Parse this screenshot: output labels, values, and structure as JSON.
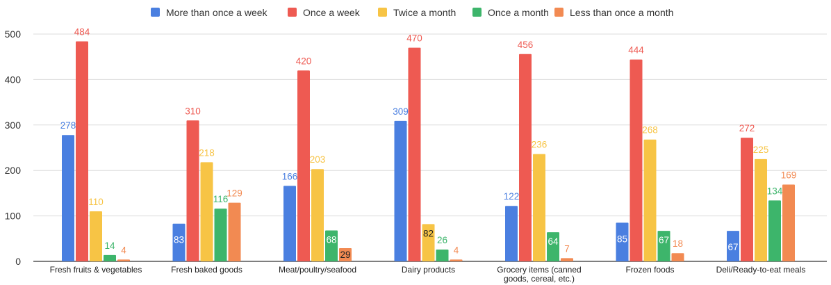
{
  "chart_data": {
    "type": "bar",
    "categories": [
      [
        "Fresh fruits & vegetables"
      ],
      [
        "Fresh baked goods"
      ],
      [
        "Meat/poultry/seafood"
      ],
      [
        "Dairy products"
      ],
      [
        "Grocery items (canned",
        "goods, cereal, etc.)"
      ],
      [
        "Frozen foods"
      ],
      [
        "Deli/Ready-to-eat meals"
      ]
    ],
    "series": [
      {
        "name": "More than once a week",
        "color": "#4a7fe0",
        "values": [
          278,
          83,
          166,
          309,
          122,
          85,
          67
        ]
      },
      {
        "name": "Once a week",
        "color": "#ee5a52",
        "values": [
          484,
          310,
          420,
          470,
          456,
          444,
          272
        ]
      },
      {
        "name": "Twice a month",
        "color": "#f7c445",
        "values": [
          110,
          218,
          203,
          82,
          236,
          268,
          225
        ]
      },
      {
        "name": "Once a month",
        "color": "#3db56b",
        "values": [
          14,
          116,
          68,
          26,
          64,
          67,
          134
        ]
      },
      {
        "name": "Less than once a month",
        "color": "#f28a52",
        "values": [
          4,
          129,
          29,
          4,
          7,
          18,
          169
        ]
      }
    ],
    "ylim": [
      0,
      500
    ],
    "yticks": [
      0,
      100,
      200,
      300,
      400,
      500
    ],
    "grid": true,
    "legend_position": "top",
    "xlabel": "",
    "ylabel": "",
    "title": ""
  }
}
